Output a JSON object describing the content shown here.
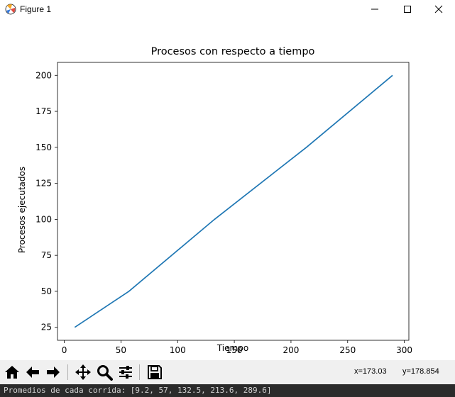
{
  "window": {
    "title": "Figure 1",
    "icon": "matplotlib-icon",
    "controls": [
      "minimize-icon",
      "maximize-icon",
      "close-icon"
    ]
  },
  "chart_data": {
    "type": "line",
    "title": "Procesos con respecto a tiempo",
    "xlabel": "Tiempo",
    "ylabel": "Procesos ejecutados",
    "xlim": [
      -6,
      304
    ],
    "ylim": [
      16,
      209
    ],
    "xticks": [
      0,
      50,
      100,
      150,
      200,
      250,
      300
    ],
    "yticks": [
      25,
      50,
      75,
      100,
      125,
      150,
      175,
      200
    ],
    "grid": false,
    "series": [
      {
        "x": [
          9.2,
          57,
          132.5,
          213.6,
          289.6
        ],
        "y": [
          25,
          50,
          100,
          150,
          200
        ],
        "color": "#1f77b4"
      }
    ]
  },
  "toolbar": {
    "buttons": [
      "home-icon",
      "back-icon",
      "forward-icon",
      "pan-icon",
      "zoom-icon",
      "configure-subplots-icon",
      "save-icon"
    ],
    "coord_x": "x=173.03",
    "coord_y": "y=178.854"
  },
  "status": {
    "text": "Promedios de cada corrida: [9.2, 57, 132.5, 213.6, 289.6]",
    "background": "#2b2b2b"
  }
}
